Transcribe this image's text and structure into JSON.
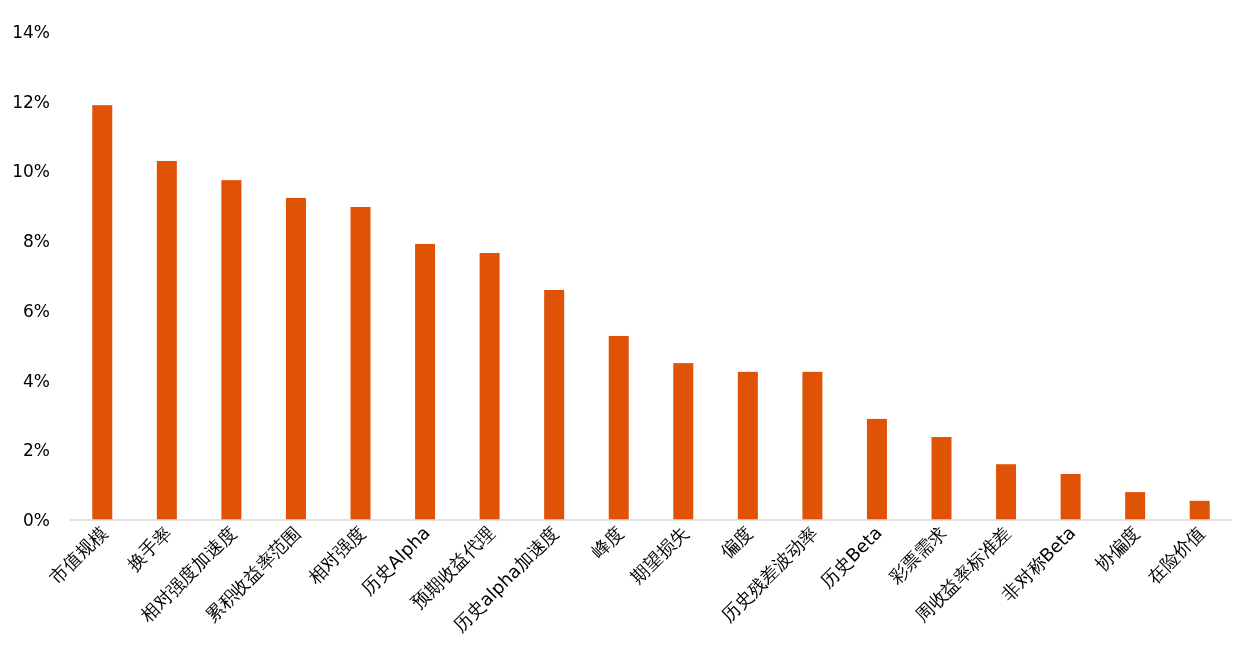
{
  "chart_data": {
    "type": "bar",
    "categories": [
      "市值规模",
      "换手率",
      "相对强度加速度",
      "累积收益率范围",
      "相对强度",
      "历史Alpha",
      "预期收益代理",
      "历史alpha加速度",
      "峰度",
      "期望损失",
      "偏度",
      "历史残差波动率",
      "历史Beta",
      "彩票需求",
      "周收益率标准差",
      "非对称Beta",
      "协偏度",
      "在险价值"
    ],
    "values": [
      11.9,
      10.3,
      9.75,
      9.24,
      8.98,
      7.92,
      7.66,
      6.6,
      5.28,
      4.5,
      4.25,
      4.25,
      2.9,
      2.38,
      1.6,
      1.32,
      0.8,
      0.55
    ],
    "color": "#e05206",
    "ylim": [
      0,
      14
    ],
    "yticks": [
      {
        "value": 0,
        "label": "0%"
      },
      {
        "value": 2,
        "label": "2%"
      },
      {
        "value": 4,
        "label": "4%"
      },
      {
        "value": 6,
        "label": "6%"
      },
      {
        "value": 8,
        "label": "8%"
      },
      {
        "value": 10,
        "label": "10%"
      },
      {
        "value": 12,
        "label": "12%"
      },
      {
        "value": 14,
        "label": "14%"
      }
    ],
    "grid": false
  }
}
